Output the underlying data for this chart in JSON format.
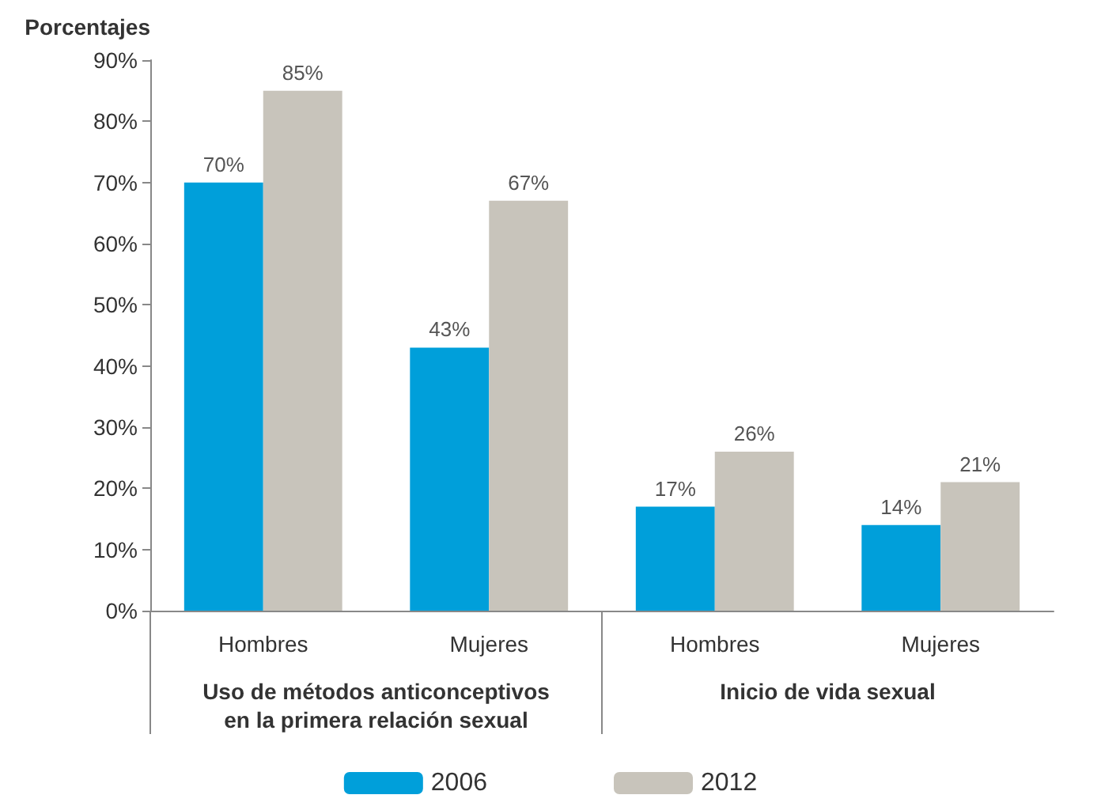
{
  "chart_data": {
    "type": "bar",
    "ylabel": "Porcentajes",
    "categories": [
      "Hombres",
      "Mujeres",
      "Hombres",
      "Mujeres"
    ],
    "series": [
      {
        "name": "2006",
        "color": "#009fda",
        "values": [
          70,
          43,
          17,
          14
        ],
        "value_labels": [
          "70%",
          "43%",
          "17%",
          "14%"
        ]
      },
      {
        "name": "2012",
        "color": "#c8c4bb",
        "values": [
          85,
          67,
          26,
          21
        ],
        "value_labels": [
          "85%",
          "67%",
          "26%",
          "21%"
        ]
      }
    ],
    "ylim": [
      0,
      90
    ],
    "yticks": [
      {
        "value": 0,
        "label": "0%"
      },
      {
        "value": 10,
        "label": "10%"
      },
      {
        "value": 20,
        "label": "20%"
      },
      {
        "value": 30,
        "label": "30%"
      },
      {
        "value": 40,
        "label": "40%"
      },
      {
        "value": 50,
        "label": "50%"
      },
      {
        "value": 60,
        "label": "60%"
      },
      {
        "value": 70,
        "label": "70%"
      },
      {
        "value": 80,
        "label": "80%"
      },
      {
        "value": 90,
        "label": "90%"
      }
    ],
    "annotations": [
      "Uso de métodos anticonceptivos\nen la primera relación sexual",
      "Inicio de vida sexual"
    ],
    "grid": false,
    "legend": "bottom"
  }
}
